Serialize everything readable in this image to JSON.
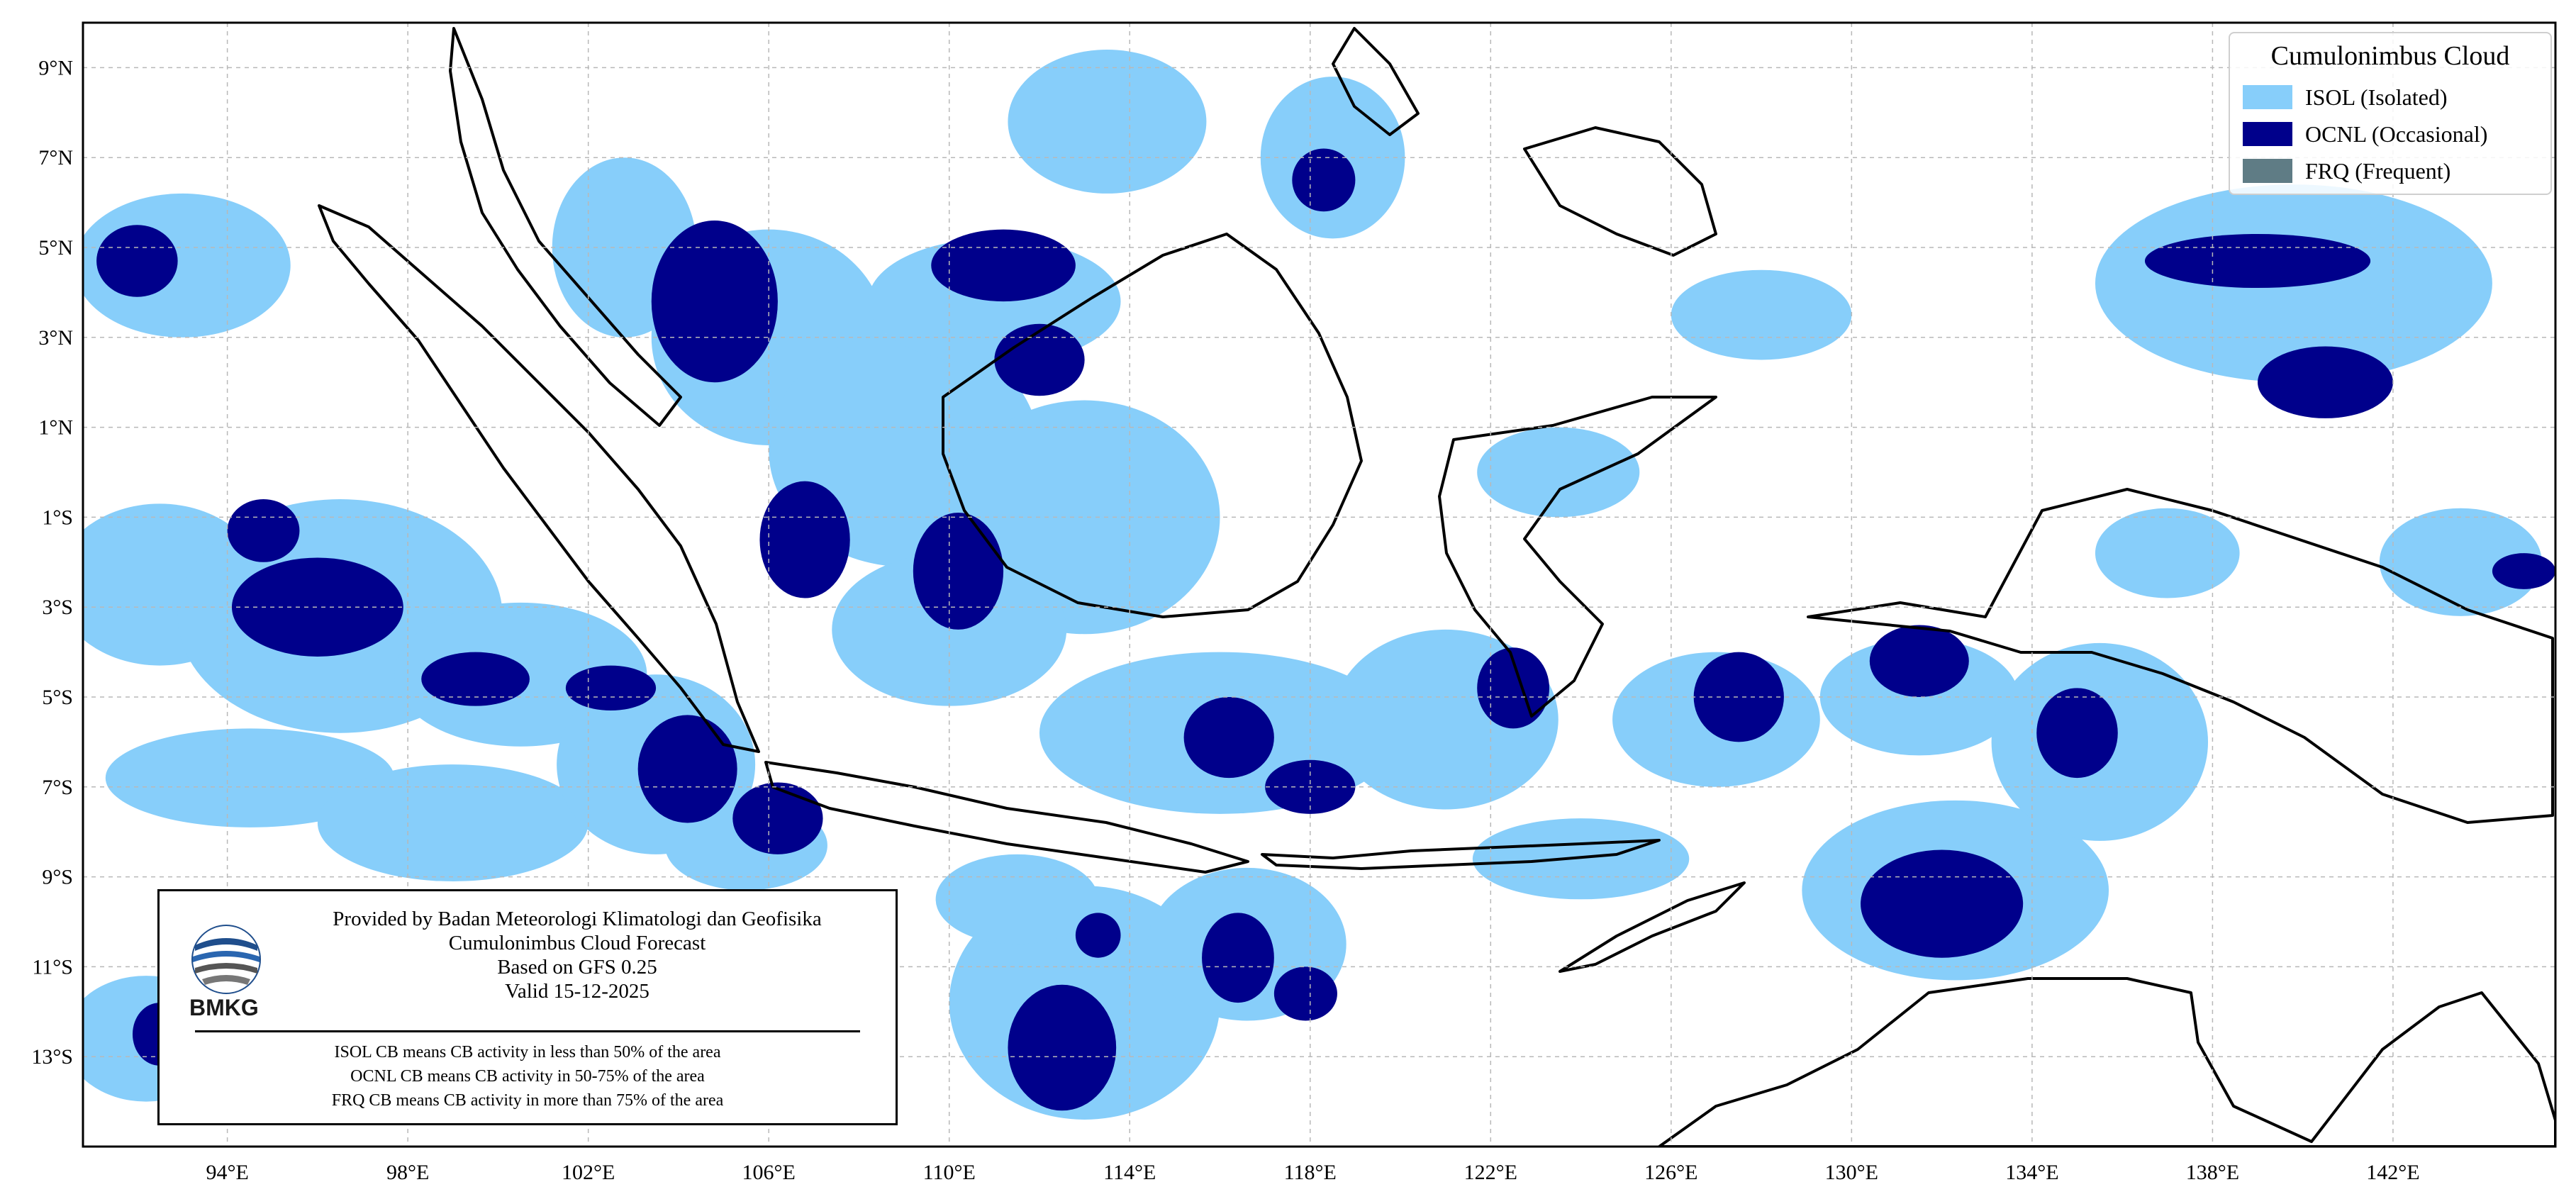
{
  "legend": {
    "title": "Cumulonimbus Cloud",
    "items": [
      {
        "label": "ISOL (Isolated)",
        "color": "#87CEFA"
      },
      {
        "label": "OCNL (Occasional)",
        "color": "#00008B"
      },
      {
        "label": "FRQ (Frequent)",
        "color": "#5F7C85"
      }
    ]
  },
  "info": {
    "line1": "Provided by Badan Meteorologi Klimatologi dan Geofisika",
    "line2": "Cumulonimbus Cloud Forecast",
    "line3": "Based on GFS 0.25",
    "line4": "Valid 15-12-2025",
    "note1": "ISOL CB means CB activity in less than 50% of the area",
    "note2": "OCNL CB means CB activity in 50-75% of the area",
    "note3": "FRQ CB means CB activity in more than 75% of the area",
    "logo_text": "BMKG"
  },
  "map": {
    "lon_range": [
      90.8,
      145.6
    ],
    "lat_range": [
      -15.0,
      10.0
    ],
    "lon_ticks": [
      {
        "v": 94,
        "label": "94°E"
      },
      {
        "v": 98,
        "label": "98°E"
      },
      {
        "v": 102,
        "label": "102°E"
      },
      {
        "v": 106,
        "label": "106°E"
      },
      {
        "v": 110,
        "label": "110°E"
      },
      {
        "v": 114,
        "label": "114°E"
      },
      {
        "v": 118,
        "label": "118°E"
      },
      {
        "v": 122,
        "label": "122°E"
      },
      {
        "v": 126,
        "label": "126°E"
      },
      {
        "v": 130,
        "label": "130°E"
      },
      {
        "v": 134,
        "label": "134°E"
      },
      {
        "v": 138,
        "label": "138°E"
      },
      {
        "v": 142,
        "label": "142°E"
      }
    ],
    "lat_ticks": [
      {
        "v": 9,
        "label": "9°N"
      },
      {
        "v": 7,
        "label": "7°N"
      },
      {
        "v": 5,
        "label": "5°N"
      },
      {
        "v": 3,
        "label": "3°N"
      },
      {
        "v": 1,
        "label": "1°N"
      },
      {
        "v": -1,
        "label": "1°S"
      },
      {
        "v": -3,
        "label": "3°S"
      },
      {
        "v": -5,
        "label": "5°S"
      },
      {
        "v": -7,
        "label": "7°S"
      },
      {
        "v": -9,
        "label": "9°S"
      },
      {
        "v": -11,
        "label": "11°S"
      },
      {
        "v": -13,
        "label": "13°S"
      }
    ],
    "isol_regions": [
      {
        "c": [
          93.0,
          4.6
        ],
        "r": [
          2.4,
          1.6
        ]
      },
      {
        "c": [
          92.5,
          -2.5
        ],
        "r": [
          2.3,
          1.8
        ]
      },
      {
        "c": [
          96.5,
          -3.2
        ],
        "r": [
          3.6,
          2.6
        ]
      },
      {
        "c": [
          100.5,
          -4.5
        ],
        "r": [
          2.8,
          1.6
        ]
      },
      {
        "c": [
          94.5,
          -6.8
        ],
        "r": [
          3.2,
          1.1
        ]
      },
      {
        "c": [
          99.0,
          -7.8
        ],
        "r": [
          3.0,
          1.3
        ]
      },
      {
        "c": [
          103.5,
          -6.5
        ],
        "r": [
          2.2,
          2.0
        ]
      },
      {
        "c": [
          106.0,
          3.0
        ],
        "r": [
          2.6,
          2.4
        ]
      },
      {
        "c": [
          102.8,
          5.0
        ],
        "r": [
          1.6,
          2.0
        ]
      },
      {
        "c": [
          109.0,
          0.5
        ],
        "r": [
          3.0,
          2.6
        ]
      },
      {
        "c": [
          111.0,
          3.8
        ],
        "r": [
          2.8,
          1.4
        ]
      },
      {
        "c": [
          113.0,
          -1.0
        ],
        "r": [
          3.0,
          2.6
        ]
      },
      {
        "c": [
          110.0,
          -3.5
        ],
        "r": [
          2.6,
          1.7
        ]
      },
      {
        "c": [
          116.0,
          -5.8
        ],
        "r": [
          4.0,
          1.8
        ]
      },
      {
        "c": [
          113.5,
          7.8
        ],
        "r": [
          2.2,
          1.6
        ]
      },
      {
        "c": [
          118.5,
          7.0
        ],
        "r": [
          1.6,
          1.8
        ]
      },
      {
        "c": [
          113.0,
          -11.8
        ],
        "r": [
          3.0,
          2.6
        ]
      },
      {
        "c": [
          116.6,
          -10.5
        ],
        "r": [
          2.2,
          1.7
        ]
      },
      {
        "c": [
          111.5,
          -9.5
        ],
        "r": [
          1.8,
          1.0
        ]
      },
      {
        "c": [
          121.0,
          -5.5
        ],
        "r": [
          2.5,
          2.0
        ]
      },
      {
        "c": [
          127.0,
          -5.5
        ],
        "r": [
          2.3,
          1.5
        ]
      },
      {
        "c": [
          131.5,
          -5.0
        ],
        "r": [
          2.2,
          1.3
        ]
      },
      {
        "c": [
          132.3,
          -9.3
        ],
        "r": [
          3.4,
          2.0
        ]
      },
      {
        "c": [
          135.5,
          -6.0
        ],
        "r": [
          2.4,
          2.2
        ]
      },
      {
        "c": [
          139.8,
          4.2
        ],
        "r": [
          4.4,
          2.2
        ]
      },
      {
        "c": [
          143.5,
          -2.0
        ],
        "r": [
          1.8,
          1.2
        ]
      },
      {
        "c": [
          128.0,
          3.5
        ],
        "r": [
          2.0,
          1.0
        ]
      },
      {
        "c": [
          123.5,
          0.0
        ],
        "r": [
          1.8,
          1.0
        ]
      },
      {
        "c": [
          137.0,
          -1.8
        ],
        "r": [
          1.6,
          1.0
        ]
      },
      {
        "c": [
          92.2,
          -12.6
        ],
        "r": [
          1.8,
          1.4
        ]
      },
      {
        "c": [
          105.5,
          -8.3
        ],
        "r": [
          1.8,
          1.0
        ]
      },
      {
        "c": [
          124.0,
          -8.6
        ],
        "r": [
          2.4,
          0.9
        ]
      }
    ],
    "ocnl_regions": [
      {
        "c": [
          92.0,
          4.7
        ],
        "r": [
          0.9,
          0.8
        ]
      },
      {
        "c": [
          96.0,
          -3.0
        ],
        "r": [
          1.9,
          1.1
        ]
      },
      {
        "c": [
          94.8,
          -1.3
        ],
        "r": [
          0.8,
          0.7
        ]
      },
      {
        "c": [
          99.5,
          -4.6
        ],
        "r": [
          1.2,
          0.6
        ]
      },
      {
        "c": [
          102.5,
          -4.8
        ],
        "r": [
          1.0,
          0.5
        ]
      },
      {
        "c": [
          104.2,
          -6.6
        ],
        "r": [
          1.1,
          1.2
        ]
      },
      {
        "c": [
          106.2,
          -7.7
        ],
        "r": [
          1.0,
          0.8
        ]
      },
      {
        "c": [
          104.8,
          3.8
        ],
        "r": [
          1.4,
          1.8
        ]
      },
      {
        "c": [
          106.8,
          -1.5
        ],
        "r": [
          1.0,
          1.3
        ]
      },
      {
        "c": [
          110.2,
          -2.2
        ],
        "r": [
          1.0,
          1.3
        ]
      },
      {
        "c": [
          111.2,
          4.6
        ],
        "r": [
          1.6,
          0.8
        ]
      },
      {
        "c": [
          112.0,
          2.5
        ],
        "r": [
          1.0,
          0.8
        ]
      },
      {
        "c": [
          116.2,
          -5.9
        ],
        "r": [
          1.0,
          0.9
        ]
      },
      {
        "c": [
          118.3,
          6.5
        ],
        "r": [
          0.7,
          0.7
        ]
      },
      {
        "c": [
          112.5,
          -12.8
        ],
        "r": [
          1.2,
          1.4
        ]
      },
      {
        "c": [
          116.4,
          -10.8
        ],
        "r": [
          0.8,
          1.0
        ]
      },
      {
        "c": [
          113.3,
          -10.3
        ],
        "r": [
          0.5,
          0.5
        ]
      },
      {
        "c": [
          117.9,
          -11.6
        ],
        "r": [
          0.7,
          0.6
        ]
      },
      {
        "c": [
          127.5,
          -5.0
        ],
        "r": [
          1.0,
          1.0
        ]
      },
      {
        "c": [
          131.5,
          -4.2
        ],
        "r": [
          1.1,
          0.8
        ]
      },
      {
        "c": [
          132.0,
          -9.6
        ],
        "r": [
          1.8,
          1.2
        ]
      },
      {
        "c": [
          135.0,
          -5.8
        ],
        "r": [
          0.9,
          1.0
        ]
      },
      {
        "c": [
          139.0,
          4.7
        ],
        "r": [
          2.5,
          0.6
        ]
      },
      {
        "c": [
          140.5,
          2.0
        ],
        "r": [
          1.5,
          0.8
        ]
      },
      {
        "c": [
          144.9,
          -2.2
        ],
        "r": [
          0.7,
          0.4
        ]
      },
      {
        "c": [
          122.5,
          -4.8
        ],
        "r": [
          0.8,
          0.9
        ]
      },
      {
        "c": [
          118.0,
          -7.0
        ],
        "r": [
          1.0,
          0.6
        ]
      },
      {
        "c": [
          92.5,
          -12.5
        ],
        "r": [
          0.6,
          0.7
        ]
      }
    ]
  }
}
